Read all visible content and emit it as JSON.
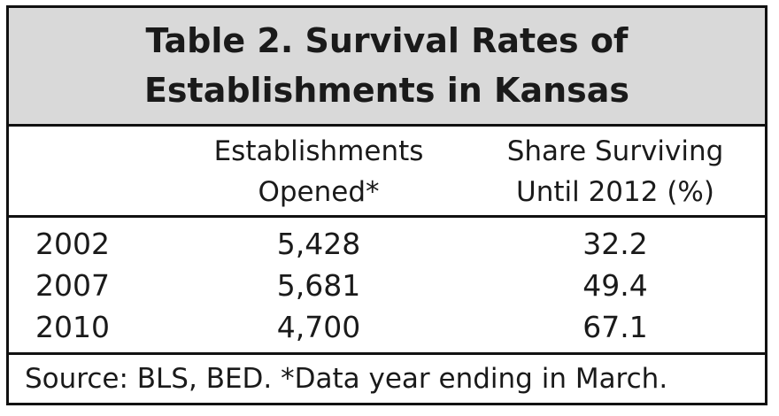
{
  "chart_data": {
    "type": "table",
    "title_line1": "Table 2. Survival Rates of",
    "title_line2": "Establishments in Kansas",
    "columns": [
      {
        "header_line1": "",
        "header_line2": ""
      },
      {
        "header_line1": "Establishments",
        "header_line2": "Opened*"
      },
      {
        "header_line1": "Share Surviving",
        "header_line2": "Until 2012 (%)"
      }
    ],
    "rows": [
      {
        "year": "2002",
        "opened": "5,428",
        "share": "32.2"
      },
      {
        "year": "2007",
        "opened": "5,681",
        "share": "49.4"
      },
      {
        "year": "2010",
        "opened": "4,700",
        "share": "67.1"
      }
    ],
    "values_opened": [
      5428,
      5681,
      4700
    ],
    "values_share": [
      32.2,
      49.4,
      67.1
    ],
    "footnote": "Source: BLS, BED. *Data year ending in March."
  },
  "colors": {
    "title_background": "#d9d9d9",
    "border": "#111111",
    "text": "#1a1a1a"
  }
}
